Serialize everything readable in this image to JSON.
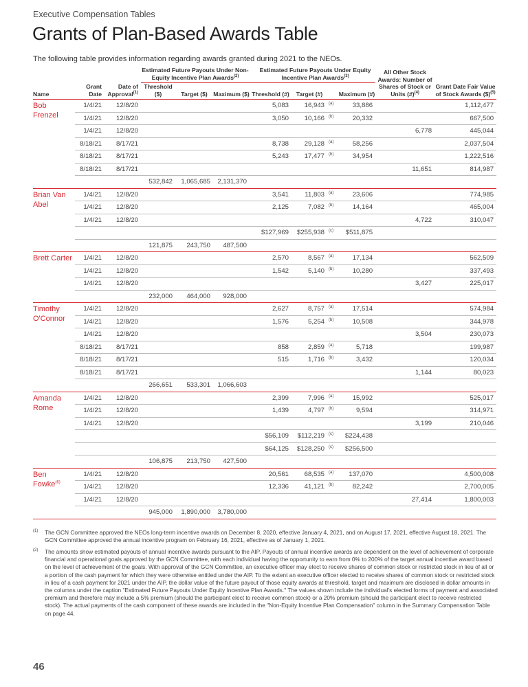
{
  "header": {
    "section": "Executive Compensation Tables",
    "title": "Grants of Plan-Based Awards Table",
    "intro": "The following table provides information regarding awards granted during 2021 to the NEOs."
  },
  "columns": {
    "group_non_equity": "Estimated Future Payouts Under Non-Equity Incentive Plan Awards",
    "group_non_equity_note": "(2)",
    "group_equity": "Estimated Future Payouts Under Equity Incentive Plan Awards",
    "group_equity_note": "(3)",
    "other_stock": "All Other Stock Awards: Number of Shares of Stock or Units (#)",
    "other_stock_note": "(4)",
    "fair_value": "Grant Date Fair Value of Stock Awards ($)",
    "fair_value_note": "(5)",
    "name": "Name",
    "grant_date": "Grant Date",
    "approval": "Date of Approval",
    "approval_note": "(1)",
    "ne_threshold": "Threshold ($)",
    "ne_target": "Target ($)",
    "ne_maximum": "Maximum ($)",
    "e_threshold": "Threshold (#)",
    "e_target": "Target (#)",
    "e_maximum": "Maximum (#)"
  },
  "people": [
    {
      "name": "Bob Frenzel",
      "name_note": "",
      "rows": [
        [
          "1/4/21",
          "12/8/20",
          "",
          "",
          "",
          "5,083",
          "16,943",
          "(a)",
          "33,886",
          "",
          "1,112,477"
        ],
        [
          "1/4/21",
          "12/8/20",
          "",
          "",
          "",
          "3,050",
          "10,166",
          "(b)",
          "20,332",
          "",
          "667,500"
        ],
        [
          "1/4/21",
          "12/8/20",
          "",
          "",
          "",
          "",
          "",
          "",
          "",
          "6,778",
          "445,044"
        ],
        [
          "8/18/21",
          "8/17/21",
          "",
          "",
          "",
          "8,738",
          "29,128",
          "(a)",
          "58,256",
          "",
          "2,037,504"
        ],
        [
          "8/18/21",
          "8/17/21",
          "",
          "",
          "",
          "5,243",
          "17,477",
          "(b)",
          "34,954",
          "",
          "1,222,516"
        ],
        [
          "8/18/21",
          "8/17/21",
          "",
          "",
          "",
          "",
          "",
          "",
          "",
          "11,651",
          "814,987"
        ],
        [
          "",
          "",
          "532,842",
          "1,065,685",
          "2,131,370",
          "",
          "",
          "",
          "",
          "",
          ""
        ]
      ]
    },
    {
      "name": "Brian Van Abel",
      "name_note": "",
      "rows": [
        [
          "1/4/21",
          "12/8/20",
          "",
          "",
          "",
          "3,541",
          "11,803",
          "(a)",
          "23,606",
          "",
          "774,985"
        ],
        [
          "1/4/21",
          "12/8/20",
          "",
          "",
          "",
          "2,125",
          "7,082",
          "(b)",
          "14,164",
          "",
          "465,004"
        ],
        [
          "1/4/21",
          "12/8/20",
          "",
          "",
          "",
          "",
          "",
          "",
          "",
          "4,722",
          "310,047"
        ],
        [
          "",
          "",
          "",
          "",
          "",
          "$127,969",
          "$255,938",
          "(c)",
          "$511,875",
          "",
          ""
        ],
        [
          "",
          "",
          "121,875",
          "243,750",
          "487,500",
          "",
          "",
          "",
          "",
          "",
          ""
        ]
      ]
    },
    {
      "name": "Brett Carter",
      "name_note": "",
      "rows": [
        [
          "1/4/21",
          "12/8/20",
          "",
          "",
          "",
          "2,570",
          "8,567",
          "(a)",
          "17,134",
          "",
          "562,509"
        ],
        [
          "1/4/21",
          "12/8/20",
          "",
          "",
          "",
          "1,542",
          "5,140",
          "(b)",
          "10,280",
          "",
          "337,493"
        ],
        [
          "1/4/21",
          "12/8/20",
          "",
          "",
          "",
          "",
          "",
          "",
          "",
          "3,427",
          "225,017"
        ],
        [
          "",
          "",
          "232,000",
          "464,000",
          "928,000",
          "",
          "",
          "",
          "",
          "",
          ""
        ]
      ]
    },
    {
      "name": "Timothy O'Connor",
      "name_note": "",
      "rows": [
        [
          "1/4/21",
          "12/8/20",
          "",
          "",
          "",
          "2,627",
          "8,757",
          "(a)",
          "17,514",
          "",
          "574,984"
        ],
        [
          "1/4/21",
          "12/8/20",
          "",
          "",
          "",
          "1,576",
          "5,254",
          "(b)",
          "10,508",
          "",
          "344,978"
        ],
        [
          "1/4/21",
          "12/8/20",
          "",
          "",
          "",
          "",
          "",
          "",
          "",
          "3,504",
          "230,073"
        ],
        [
          "8/18/21",
          "8/17/21",
          "",
          "",
          "",
          "858",
          "2,859",
          "(a)",
          "5,718",
          "",
          "199,987"
        ],
        [
          "8/18/21",
          "8/17/21",
          "",
          "",
          "",
          "515",
          "1,716",
          "(b)",
          "3,432",
          "",
          "120,034"
        ],
        [
          "8/18/21",
          "8/17/21",
          "",
          "",
          "",
          "",
          "",
          "",
          "",
          "1,144",
          "80,023"
        ],
        [
          "",
          "",
          "266,651",
          "533,301",
          "1,066,603",
          "",
          "",
          "",
          "",
          "",
          ""
        ]
      ]
    },
    {
      "name": "Amanda Rome",
      "name_note": "",
      "rows": [
        [
          "1/4/21",
          "12/8/20",
          "",
          "",
          "",
          "2,399",
          "7,996",
          "(a)",
          "15,992",
          "",
          "525,017"
        ],
        [
          "1/4/21",
          "12/8/20",
          "",
          "",
          "",
          "1,439",
          "4,797",
          "(b)",
          "9,594",
          "",
          "314,971"
        ],
        [
          "1/4/21",
          "12/8/20",
          "",
          "",
          "",
          "",
          "",
          "",
          "",
          "3,199",
          "210,046"
        ],
        [
          "",
          "",
          "",
          "",
          "",
          "$56,109",
          "$112,219",
          "(c)",
          "$224,438",
          "",
          ""
        ],
        [
          "",
          "",
          "",
          "",
          "",
          "$64,125",
          "$128,250",
          "(c)",
          "$256,500",
          "",
          ""
        ],
        [
          "",
          "",
          "106,875",
          "213,750",
          "427,500",
          "",
          "",
          "",
          "",
          "",
          ""
        ]
      ]
    },
    {
      "name": "Ben Fowke",
      "name_note": "(6)",
      "rows": [
        [
          "1/4/21",
          "12/8/20",
          "",
          "",
          "",
          "20,561",
          "68,535",
          "(a)",
          "137,070",
          "",
          "4,500,008"
        ],
        [
          "1/4/21",
          "12/8/20",
          "",
          "",
          "",
          "12,336",
          "41,121",
          "(b)",
          "82,242",
          "",
          "2,700,005"
        ],
        [
          "1/4/21",
          "12/8/20",
          "",
          "",
          "",
          "",
          "",
          "",
          "",
          "27,414",
          "1,800,003"
        ],
        [
          "",
          "",
          "945,000",
          "1,890,000",
          "3,780,000",
          "",
          "",
          "",
          "",
          "",
          ""
        ]
      ]
    }
  ],
  "footnotes": [
    {
      "num": "(1)",
      "text": "The GCN Committee approved the NEOs long-term incentive awards on December 8, 2020, effective January 4, 2021, and on August 17, 2021, effective August 18, 2021. The GCN Committee approved the annual incentive program on February 16, 2021, effective as of January 1, 2021."
    },
    {
      "num": "(2)",
      "text": "The amounts show estimated payouts of annual incentive awards pursuant to the AIP. Payouts of annual incentive awards are dependent on the level of achievement of corporate financial and operational goals approved by the GCN Committee, with each individual having the opportunity to earn from 0% to 200% of the target annual incentive award based on the level of achievement of the goals. With approval of the GCN Committee, an executive officer may elect to receive shares of common stock or restricted stock in lieu of all or a portion of the cash payment for which they were otherwise entitled under the AIP. To the extent an executive officer elected to receive shares of common stock or restricted stock in lieu of a cash payment for 2021 under the AIP, the dollar value of the future payout of those equity awards at threshold, target and maximum are disclosed in dollar amounts in the columns under the caption \"Estimated Future Payouts Under Equity Incentive Plan Awards.\" The values shown include the individual's elected forms of payment and associated premium and therefore may include a 5% premium (should the participant elect to receive common stock) or a 20% premium (should the participant elect to receive restricted stock). The actual payments of the cash component of these awards are included in the \"Non-Equity Incentive Plan Compensation\" column in the Summary Compensation Table on page 44."
    }
  ],
  "page_number": "46",
  "colors": {
    "accent": "#d8262f"
  }
}
